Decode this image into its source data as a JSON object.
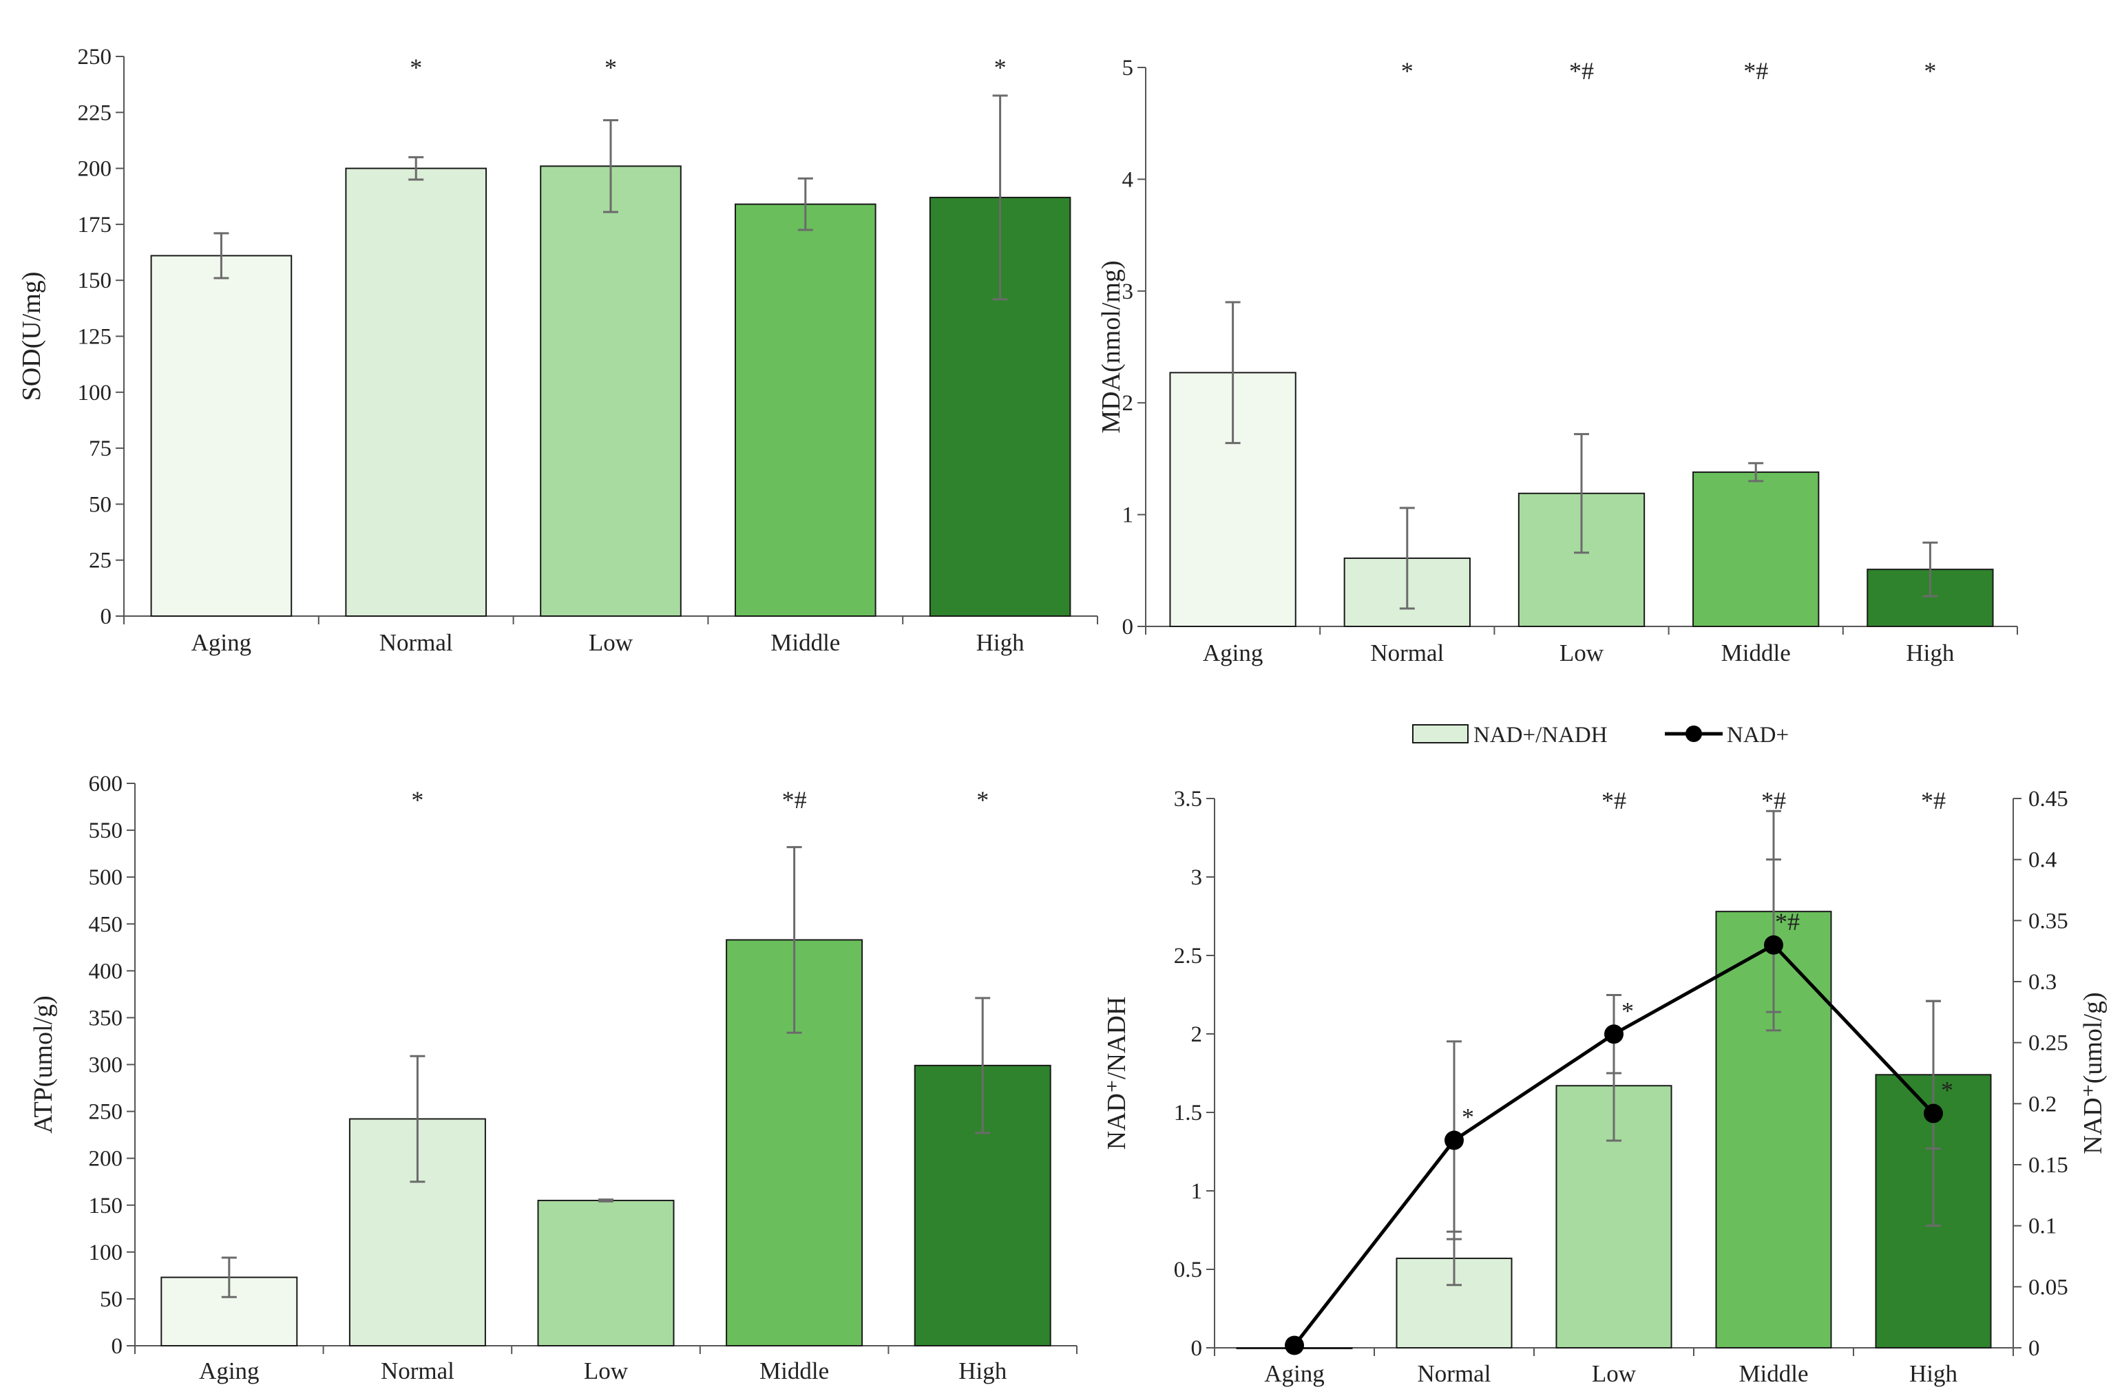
{
  "colors": {
    "Aging": "#f1f8ee",
    "Normal": "#dcefd8",
    "Low": "#a8dba0",
    "Middle": "#6abf5c",
    "High": "#2f832c",
    "axis": "#555555",
    "error": "#6b6b6b",
    "line": "#000000"
  },
  "chart_data": [
    {
      "type": "bar",
      "id": "sod",
      "title": "",
      "ylabel": "SOD(U/mg)",
      "xlabel": "",
      "ylim": [
        0,
        250
      ],
      "yticks": [
        "0",
        "25",
        "50",
        "75",
        "100",
        "125",
        "150",
        "175",
        "200",
        "225",
        "250"
      ],
      "ytick_values": [
        0,
        25,
        50,
        75,
        100,
        125,
        150,
        175,
        200,
        225,
        250
      ],
      "categories": [
        "Aging",
        "Normal",
        "Low",
        "Middle",
        "High"
      ],
      "values": [
        161,
        200,
        201,
        184,
        187
      ],
      "errors": [
        10,
        5,
        20.5,
        11.5,
        45.5
      ],
      "significance": [
        "",
        "*",
        "*",
        "",
        "*"
      ]
    },
    {
      "type": "bar",
      "id": "mda",
      "title": "",
      "ylabel": "MDA(nmol/mg)",
      "xlabel": "",
      "ylim": [
        0,
        5
      ],
      "yticks": [
        "0",
        "1",
        "2",
        "3",
        "4",
        "5"
      ],
      "ytick_values": [
        0,
        1,
        2,
        3,
        4,
        5
      ],
      "categories": [
        "Aging",
        "Normal",
        "Low",
        "Middle",
        "High"
      ],
      "values": [
        2.27,
        0.61,
        1.19,
        1.38,
        0.51
      ],
      "errors": [
        0.63,
        0.45,
        0.53,
        0.08,
        0.24
      ],
      "significance": [
        "",
        "*",
        "*#",
        "*#",
        "*"
      ]
    },
    {
      "type": "bar",
      "id": "atp",
      "title": "",
      "ylabel": "ATP(umol/g)",
      "xlabel": "",
      "ylim": [
        0,
        600
      ],
      "yticks": [
        "0",
        "50",
        "100",
        "150",
        "200",
        "250",
        "300",
        "350",
        "400",
        "450",
        "500",
        "550",
        "600"
      ],
      "ytick_values": [
        0,
        50,
        100,
        150,
        200,
        250,
        300,
        350,
        400,
        450,
        500,
        550,
        600
      ],
      "categories": [
        "Aging",
        "Normal",
        "Low",
        "Middle",
        "High"
      ],
      "values": [
        73,
        242,
        155,
        433,
        299
      ],
      "errors": [
        21,
        67,
        1,
        99,
        72
      ],
      "significance": [
        "",
        "*",
        "",
        "*#",
        "*"
      ]
    },
    {
      "type": "bar+line",
      "id": "nad",
      "title": "",
      "ylabel": "NAD⁺/NADH",
      "ylabel_right": "NAD⁺(umol/g)",
      "xlabel": "",
      "ylim": [
        0,
        3.5
      ],
      "ylim_right": [
        0,
        0.45
      ],
      "yticks": [
        "0",
        "0.5",
        "1",
        "1.5",
        "2",
        "2.5",
        "3",
        "3.5"
      ],
      "ytick_values": [
        0,
        0.5,
        1,
        1.5,
        2,
        2.5,
        3,
        3.5
      ],
      "yticks_right": [
        "0",
        "0.05",
        "0.1",
        "0.15",
        "0.2",
        "0.25",
        "0.3",
        "0.35",
        "0.4",
        "0.45"
      ],
      "ytick_values_right": [
        0,
        0.05,
        0.1,
        0.15,
        0.2,
        0.25,
        0.3,
        0.35,
        0.4,
        0.45
      ],
      "categories": [
        "Aging",
        "Normal",
        "Low",
        "Middle",
        "High"
      ],
      "legend": [
        "NAD+/NADH",
        "NAD+"
      ],
      "series": [
        {
          "name": "NAD+/NADH",
          "kind": "bar",
          "axis": "left",
          "values": [
            0.0,
            0.57,
            1.67,
            2.78,
            1.74
          ],
          "errors": [
            0.0,
            0.17,
            0.35,
            0.64,
            0.47
          ],
          "significance": [
            "",
            "",
            "*#",
            "*#",
            "*#"
          ]
        },
        {
          "name": "NAD+",
          "kind": "line",
          "axis": "right",
          "values": [
            0.002,
            0.17,
            0.257,
            0.33,
            0.192
          ],
          "errors": [
            0.0,
            0.081,
            0.032,
            0.07,
            0.092
          ],
          "significance": [
            "",
            "*",
            "*",
            "*#",
            "*"
          ]
        }
      ]
    }
  ]
}
